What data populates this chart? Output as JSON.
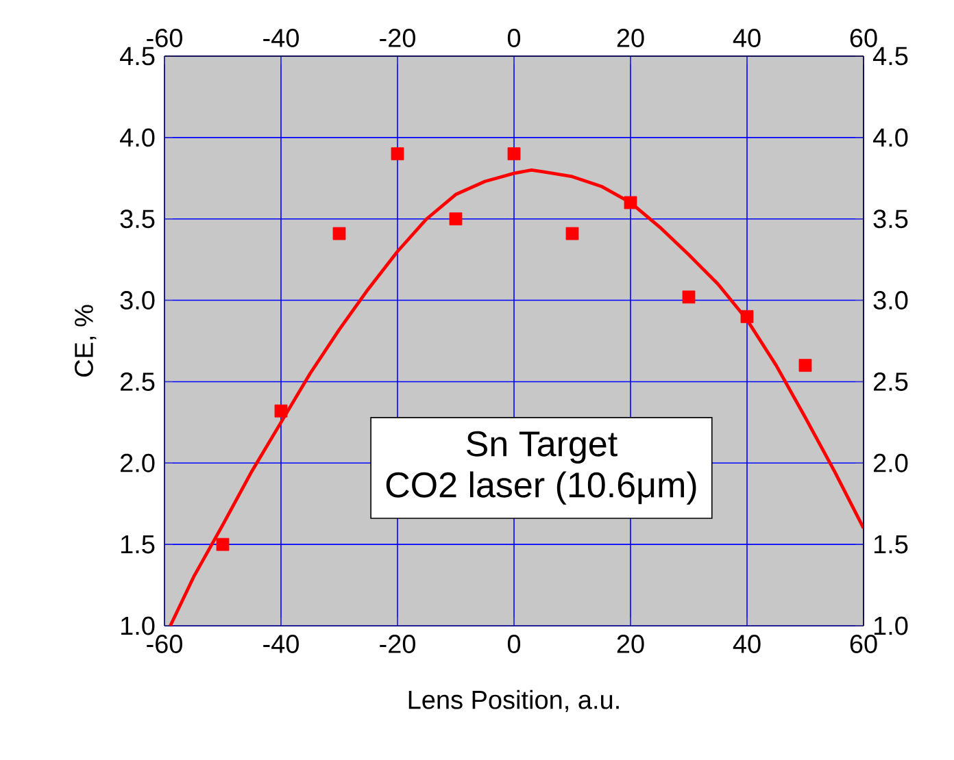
{
  "chart_data": {
    "type": "scatter",
    "xlabel": "Lens Position, a.u.",
    "ylabel": "CE, %",
    "xlim": [
      -60,
      60
    ],
    "xticks": [
      -60,
      -40,
      -20,
      0,
      20,
      40,
      60
    ],
    "x2lim": [
      -60,
      60
    ],
    "x2ticks": [
      -60,
      -40,
      -20,
      0,
      20,
      40,
      60
    ],
    "ylim": [
      1.0,
      4.5
    ],
    "yticks": [
      {
        "value": 1.0,
        "label": "1.0"
      },
      1.5,
      {
        "value": 2.0,
        "label": "2.0"
      },
      2.5,
      {
        "value": 3.0,
        "label": "3.0"
      },
      3.5,
      {
        "value": 4.0,
        "label": "4.0"
      },
      4.5
    ],
    "y2lim": [
      1.0,
      4.5
    ],
    "y2ticks": [
      {
        "value": 1.0,
        "label": "1.0"
      },
      1.5,
      {
        "value": 2.0,
        "label": "2.0"
      },
      2.5,
      {
        "value": 3.0,
        "label": "3.0"
      },
      3.5,
      {
        "value": 4.0,
        "label": "4.0"
      },
      4.5
    ],
    "grid": true,
    "marker": "square",
    "annotations": [
      "Sn Target",
      "CO2 laser (10.6μm)"
    ],
    "series": [
      {
        "color": "#ff0000",
        "x": [
          -50,
          -40,
          -30,
          -20,
          -10,
          0,
          10,
          20,
          30,
          40,
          50
        ],
        "values": [
          1.5,
          2.32,
          3.41,
          3.9,
          3.5,
          3.9,
          3.41,
          3.6,
          3.02,
          2.9,
          2.6
        ]
      },
      {
        "type": "line",
        "color": "#ff0000",
        "marker": "none",
        "line_style": "solid",
        "x": [
          -59,
          -55,
          -50,
          -45,
          -40,
          -35,
          -30,
          -25,
          -20,
          -15,
          -10,
          -5,
          0,
          3,
          5,
          10,
          15,
          20,
          25,
          30,
          35,
          40,
          45,
          50,
          55,
          60
        ],
        "values": [
          1.0,
          1.3,
          1.62,
          1.95,
          2.25,
          2.55,
          2.82,
          3.07,
          3.3,
          3.5,
          3.65,
          3.73,
          3.78,
          3.8,
          3.79,
          3.76,
          3.7,
          3.6,
          3.45,
          3.28,
          3.1,
          2.88,
          2.6,
          2.28,
          1.95,
          1.6
        ]
      }
    ]
  }
}
